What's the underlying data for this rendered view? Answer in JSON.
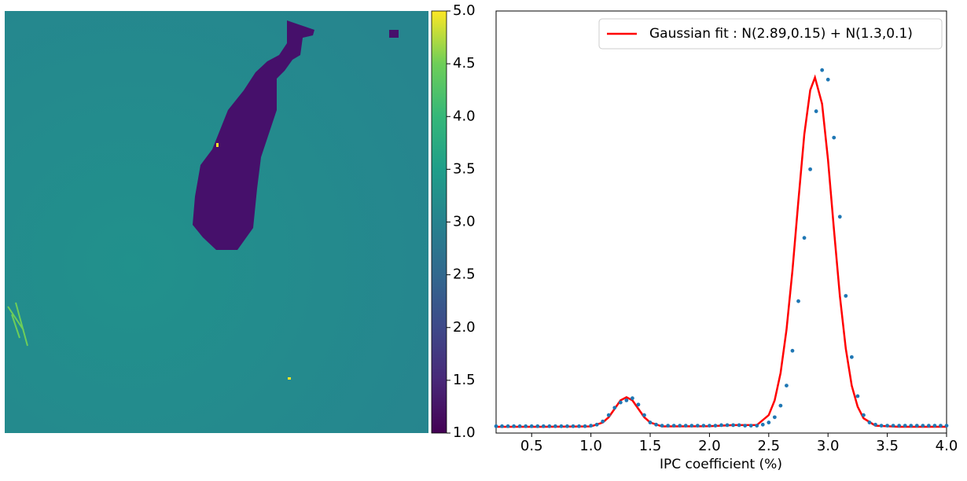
{
  "chart_data": [
    {
      "type": "heatmap",
      "colorbar": {
        "lim": [
          1.0,
          5.0
        ],
        "ticks": [
          {
            "value": 1,
            "label": "1.0"
          },
          1.5,
          {
            "value": 2,
            "label": "2.0"
          },
          2.5,
          {
            "value": 3,
            "label": "3.0"
          },
          3.5,
          {
            "value": 4,
            "label": "4.0"
          },
          4.5,
          {
            "value": 5,
            "label": "5.0"
          }
        ]
      }
    },
    {
      "type": "line",
      "xlabel": "IPC coefficient (%)",
      "xlim": [
        0.2,
        4.0
      ],
      "xticks": [
        0.5,
        {
          "value": 1,
          "label": "1.0"
        },
        1.5,
        {
          "value": 2,
          "label": "2.0"
        },
        2.5,
        {
          "value": 3,
          "label": "3.0"
        },
        3.5,
        {
          "value": 4,
          "label": "4.0"
        }
      ],
      "ylim": [
        1.0,
        5.0
      ],
      "legend": "upper right",
      "series": [
        {
          "name": "Gaussian fit : N(2.89,0.15) + N(1.3,0.1)",
          "color": "#ff0000",
          "style": "line",
          "x": [
            0.2,
            0.6,
            1.0,
            1.1,
            1.15,
            1.2,
            1.25,
            1.3,
            1.35,
            1.4,
            1.45,
            1.5,
            1.6,
            2.0,
            2.2,
            2.4,
            2.5,
            2.55,
            2.6,
            2.65,
            2.7,
            2.75,
            2.8,
            2.85,
            2.89,
            2.95,
            3.0,
            3.05,
            3.1,
            3.15,
            3.2,
            3.25,
            3.3,
            3.4,
            3.6,
            4.0
          ],
          "values": [
            1.06,
            1.06,
            1.063,
            1.1,
            1.15,
            1.23,
            1.31,
            1.34,
            1.31,
            1.23,
            1.15,
            1.1,
            1.063,
            1.065,
            1.075,
            1.076,
            1.17,
            1.31,
            1.57,
            1.98,
            2.54,
            3.2,
            3.83,
            4.25,
            4.37,
            4.12,
            3.59,
            2.93,
            2.3,
            1.8,
            1.45,
            1.25,
            1.14,
            1.07,
            1.06,
            1.06
          ]
        },
        {
          "color": "#1f77b4",
          "style": "scatter",
          "x": [
            0.2,
            0.25,
            0.3,
            0.35,
            0.4,
            0.45,
            0.5,
            0.55,
            0.6,
            0.65,
            0.7,
            0.75,
            0.8,
            0.85,
            0.9,
            0.95,
            1.0,
            1.05,
            1.1,
            1.15,
            1.2,
            1.25,
            1.3,
            1.35,
            1.4,
            1.45,
            1.5,
            1.55,
            1.6,
            1.65,
            1.7,
            1.75,
            1.8,
            1.85,
            1.9,
            1.95,
            2.0,
            2.05,
            2.1,
            2.15,
            2.2,
            2.25,
            2.3,
            2.35,
            2.4,
            2.45,
            2.5,
            2.55,
            2.6,
            2.65,
            2.7,
            2.75,
            2.8,
            2.85,
            2.9,
            2.95,
            3.0,
            3.05,
            3.1,
            3.15,
            3.2,
            3.25,
            3.3,
            3.35,
            3.4,
            3.45,
            3.5,
            3.55,
            3.6,
            3.65,
            3.7,
            3.75,
            3.8,
            3.85,
            3.9,
            3.95,
            4.0
          ],
          "values": [
            1.065,
            1.065,
            1.065,
            1.065,
            1.065,
            1.065,
            1.065,
            1.065,
            1.065,
            1.065,
            1.065,
            1.065,
            1.065,
            1.065,
            1.065,
            1.065,
            1.07,
            1.08,
            1.11,
            1.17,
            1.24,
            1.29,
            1.31,
            1.33,
            1.27,
            1.17,
            1.1,
            1.08,
            1.07,
            1.07,
            1.07,
            1.07,
            1.07,
            1.07,
            1.07,
            1.07,
            1.07,
            1.07,
            1.075,
            1.075,
            1.075,
            1.075,
            1.07,
            1.07,
            1.07,
            1.08,
            1.1,
            1.15,
            1.26,
            1.45,
            1.78,
            2.25,
            2.85,
            3.5,
            4.05,
            4.44,
            4.35,
            3.8,
            3.05,
            2.3,
            1.72,
            1.35,
            1.17,
            1.1,
            1.08,
            1.07,
            1.07,
            1.07,
            1.07,
            1.07,
            1.07,
            1.07,
            1.07,
            1.07,
            1.07,
            1.07,
            1.07
          ]
        }
      ]
    }
  ]
}
